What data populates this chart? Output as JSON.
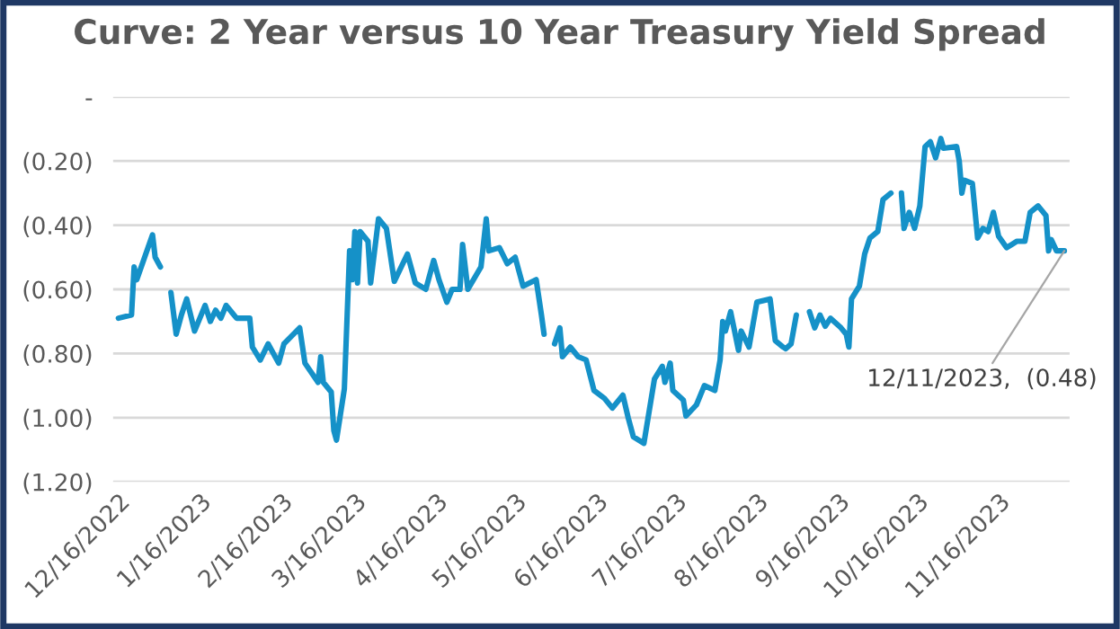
{
  "chart_data": {
    "type": "line",
    "title": "Curve: 2 Year versus 10 Year Treasury Yield Spread",
    "series": [
      {
        "color": "#1591c8",
        "x": [
          "2022-12-16",
          "2022-12-21",
          "2022-12-22",
          "2022-12-23",
          "2022-12-29",
          "2022-12-30",
          "2023-01-01",
          "2023-01-03",
          "2023-01-05",
          "2023-01-07",
          "2023-01-09",
          "2023-01-11",
          "2023-01-14",
          "2023-01-18",
          "2023-01-20",
          "2023-01-22",
          "2023-01-24",
          "2023-01-26",
          "2023-01-30",
          "2023-02-04",
          "2023-02-05",
          "2023-02-08",
          "2023-02-11",
          "2023-02-15",
          "2023-02-17",
          "2023-02-23",
          "2023-02-25",
          "2023-03-02",
          "2023-03-03",
          "2023-03-04",
          "2023-03-07",
          "2023-03-08",
          "2023-03-09",
          "2023-03-12",
          "2023-03-14",
          "2023-03-15",
          "2023-03-16",
          "2023-03-17",
          "2023-03-18",
          "2023-03-21",
          "2023-03-22",
          "2023-03-25",
          "2023-03-28",
          "2023-03-31",
          "2023-04-05",
          "2023-04-08",
          "2023-04-12",
          "2023-04-15",
          "2023-04-17",
          "2023-04-20",
          "2023-04-22",
          "2023-04-25",
          "2023-04-26",
          "2023-04-28",
          "2023-05-03",
          "2023-05-05",
          "2023-05-06",
          "2023-05-10",
          "2023-05-13",
          "2023-05-16",
          "2023-05-19",
          "2023-05-24",
          "2023-05-26",
          "2023-05-27",
          "2023-05-29",
          "2023-05-31",
          "2023-06-02",
          "2023-06-03",
          "2023-06-06",
          "2023-06-09",
          "2023-06-12",
          "2023-06-15",
          "2023-06-19",
          "2023-06-22",
          "2023-06-26",
          "2023-06-28",
          "2023-06-30",
          "2023-07-04",
          "2023-07-08",
          "2023-07-11",
          "2023-07-12",
          "2023-07-14",
          "2023-07-15",
          "2023-07-19",
          "2023-07-20",
          "2023-07-24",
          "2023-07-27",
          "2023-07-31",
          "2023-08-02",
          "2023-08-03",
          "2023-08-04",
          "2023-08-06",
          "2023-08-09",
          "2023-08-10",
          "2023-08-13",
          "2023-08-16",
          "2023-08-21",
          "2023-08-23",
          "2023-08-26",
          "2023-08-27",
          "2023-08-29",
          "2023-08-31",
          "2023-09-02",
          "2023-09-05",
          "2023-09-07",
          "2023-09-09",
          "2023-09-11",
          "2023-09-13",
          "2023-09-17",
          "2023-09-19",
          "2023-09-20",
          "2023-09-21",
          "2023-09-24",
          "2023-09-26",
          "2023-09-28",
          "2023-10-01",
          "2023-10-03",
          "2023-10-06",
          "2023-10-08",
          "2023-10-10",
          "2023-10-11",
          "2023-10-13",
          "2023-10-15",
          "2023-10-17",
          "2023-10-19",
          "2023-10-21",
          "2023-10-23",
          "2023-10-25",
          "2023-10-26",
          "2023-10-31",
          "2023-11-01",
          "2023-11-02",
          "2023-11-03",
          "2023-11-06",
          "2023-11-08",
          "2023-11-10",
          "2023-11-12",
          "2023-11-14",
          "2023-11-16",
          "2023-11-19",
          "2023-11-21",
          "2023-11-23",
          "2023-11-26",
          "2023-11-28",
          "2023-12-01",
          "2023-12-04",
          "2023-12-05",
          "2023-12-06",
          "2023-12-08",
          "2023-12-11"
        ],
        "values": [
          -0.69,
          -0.68,
          -0.53,
          -0.57,
          -0.43,
          -0.5,
          -0.53,
          null,
          -0.61,
          -0.74,
          -0.68,
          -0.63,
          -0.73,
          -0.65,
          -0.7,
          -0.665,
          -0.69,
          -0.65,
          -0.69,
          -0.69,
          -0.78,
          -0.82,
          -0.77,
          -0.83,
          -0.77,
          -0.72,
          -0.83,
          -0.89,
          -0.81,
          -0.89,
          -0.92,
          -1.04,
          -1.07,
          -0.91,
          -0.48,
          -0.57,
          -0.42,
          -0.58,
          -0.42,
          -0.45,
          -0.58,
          -0.38,
          -0.41,
          -0.575,
          -0.49,
          -0.58,
          -0.6,
          -0.51,
          -0.57,
          -0.64,
          -0.6,
          -0.6,
          -0.46,
          -0.6,
          -0.53,
          -0.38,
          -0.48,
          -0.47,
          -0.52,
          -0.5,
          -0.59,
          -0.57,
          -0.68,
          -0.74,
          null,
          -0.77,
          -0.72,
          -0.81,
          -0.78,
          -0.81,
          -0.82,
          -0.915,
          -0.94,
          -0.97,
          -0.93,
          -1.0,
          -1.06,
          -1.08,
          -0.88,
          -0.84,
          -0.89,
          -0.83,
          -0.915,
          -0.945,
          -0.995,
          -0.96,
          -0.9,
          -0.915,
          -0.82,
          -0.7,
          -0.73,
          -0.67,
          -0.79,
          -0.73,
          -0.78,
          -0.64,
          -0.63,
          -0.76,
          -0.78,
          -0.785,
          -0.77,
          -0.68,
          null,
          -0.67,
          -0.72,
          -0.68,
          -0.715,
          -0.69,
          -0.72,
          -0.74,
          -0.78,
          -0.63,
          -0.59,
          -0.49,
          -0.44,
          -0.42,
          -0.32,
          -0.3,
          null,
          -0.3,
          -0.41,
          -0.36,
          -0.41,
          -0.34,
          -0.155,
          -0.14,
          -0.19,
          -0.13,
          -0.16,
          -0.155,
          -0.2,
          -0.3,
          -0.26,
          -0.27,
          -0.44,
          -0.41,
          -0.42,
          -0.36,
          -0.435,
          -0.47,
          -0.46,
          -0.45,
          -0.45,
          -0.36,
          -0.34,
          -0.37,
          -0.48,
          -0.445,
          -0.48,
          -0.48
        ]
      }
    ],
    "xlim": [
      "2022-12-14",
      "2023-12-13"
    ],
    "xticks": [
      {
        "value": "2022-12-16",
        "label": "12/16/2022"
      },
      {
        "value": "2023-01-16",
        "label": "1/16/2023"
      },
      {
        "value": "2023-02-16",
        "label": "2/16/2023"
      },
      {
        "value": "2023-03-16",
        "label": "3/16/2023"
      },
      {
        "value": "2023-04-16",
        "label": "4/16/2023"
      },
      {
        "value": "2023-05-16",
        "label": "5/16/2023"
      },
      {
        "value": "2023-06-16",
        "label": "6/16/2023"
      },
      {
        "value": "2023-07-16",
        "label": "7/16/2023"
      },
      {
        "value": "2023-08-16",
        "label": "8/16/2023"
      },
      {
        "value": "2023-09-16",
        "label": "9/16/2023"
      },
      {
        "value": "2023-10-16",
        "label": "10/16/2023"
      },
      {
        "value": "2023-11-16",
        "label": "11/16/2023"
      }
    ],
    "ylim": [
      -1.2,
      0
    ],
    "yticks": [
      {
        "value": 0,
        "label": "-"
      },
      {
        "value": -0.2,
        "label": "(0.20)"
      },
      {
        "value": -0.4,
        "label": "(0.40)"
      },
      {
        "value": -0.6,
        "label": "(0.60)"
      },
      {
        "value": -0.8,
        "label": "(0.80)"
      },
      {
        "value": -1.0,
        "label": "(1.00)"
      },
      {
        "value": -1.2,
        "label": "(1.20)"
      }
    ],
    "grid": "y",
    "annotations": [
      {
        "text": "12/11/2023,  (0.48)",
        "x": "2023-12-11",
        "y": -0.48
      }
    ]
  }
}
